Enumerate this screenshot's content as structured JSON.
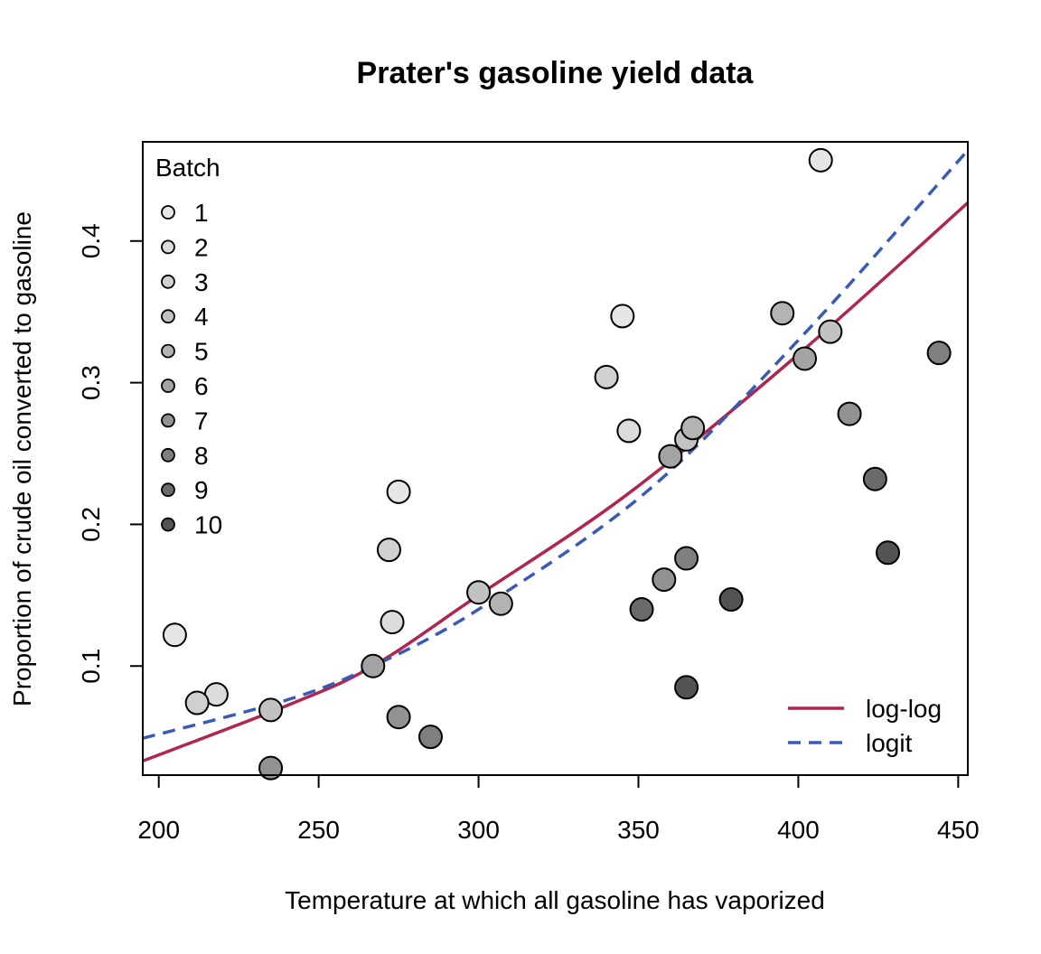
{
  "chart_data": {
    "type": "scatter",
    "title": "Prater's gasoline yield data",
    "xlabel": "Temperature at which all gasoline has vaporized",
    "ylabel": "Proportion of crude oil converted to gasoline",
    "xlim": [
      195,
      453
    ],
    "ylim": [
      0.023,
      0.47
    ],
    "x_ticks": [
      200,
      250,
      300,
      350,
      400,
      450
    ],
    "y_ticks": [
      0.1,
      0.2,
      0.3,
      0.4
    ],
    "grid": false,
    "batch_legend": {
      "title": "Batch",
      "placement": "top-left",
      "items": [
        {
          "label": "1",
          "color": "#e6e6e6"
        },
        {
          "label": "2",
          "color": "#dcdcdc"
        },
        {
          "label": "3",
          "color": "#d0d0d0"
        },
        {
          "label": "4",
          "color": "#c2c2c2"
        },
        {
          "label": "5",
          "color": "#b3b3b3"
        },
        {
          "label": "6",
          "color": "#a3a3a3"
        },
        {
          "label": "7",
          "color": "#929292"
        },
        {
          "label": "8",
          "color": "#7f7f7f"
        },
        {
          "label": "9",
          "color": "#6a6a6a"
        },
        {
          "label": "10",
          "color": "#535353"
        }
      ]
    },
    "points": [
      {
        "x": 205,
        "y": 0.122,
        "batch": 1
      },
      {
        "x": 275,
        "y": 0.223,
        "batch": 1
      },
      {
        "x": 345,
        "y": 0.347,
        "batch": 1
      },
      {
        "x": 407,
        "y": 0.457,
        "batch": 1
      },
      {
        "x": 218,
        "y": 0.08,
        "batch": 2
      },
      {
        "x": 273,
        "y": 0.131,
        "batch": 2
      },
      {
        "x": 347,
        "y": 0.266,
        "batch": 2
      },
      {
        "x": 212,
        "y": 0.074,
        "batch": 3
      },
      {
        "x": 272,
        "y": 0.182,
        "batch": 3
      },
      {
        "x": 340,
        "y": 0.304,
        "batch": 3
      },
      {
        "x": 235,
        "y": 0.069,
        "batch": 4
      },
      {
        "x": 300,
        "y": 0.152,
        "batch": 4
      },
      {
        "x": 365,
        "y": 0.26,
        "batch": 4
      },
      {
        "x": 410,
        "y": 0.336,
        "batch": 4
      },
      {
        "x": 307,
        "y": 0.144,
        "batch": 5
      },
      {
        "x": 367,
        "y": 0.268,
        "batch": 5
      },
      {
        "x": 395,
        "y": 0.349,
        "batch": 5
      },
      {
        "x": 267,
        "y": 0.1,
        "batch": 6
      },
      {
        "x": 360,
        "y": 0.248,
        "batch": 6
      },
      {
        "x": 402,
        "y": 0.317,
        "batch": 6
      },
      {
        "x": 235,
        "y": 0.028,
        "batch": 7
      },
      {
        "x": 275,
        "y": 0.064,
        "batch": 7
      },
      {
        "x": 358,
        "y": 0.161,
        "batch": 7
      },
      {
        "x": 416,
        "y": 0.278,
        "batch": 7
      },
      {
        "x": 285,
        "y": 0.05,
        "batch": 8
      },
      {
        "x": 365,
        "y": 0.176,
        "batch": 8
      },
      {
        "x": 444,
        "y": 0.321,
        "batch": 8
      },
      {
        "x": 351,
        "y": 0.14,
        "batch": 9
      },
      {
        "x": 424,
        "y": 0.232,
        "batch": 9
      },
      {
        "x": 365,
        "y": 0.085,
        "batch": 10
      },
      {
        "x": 379,
        "y": 0.147,
        "batch": 10
      },
      {
        "x": 428,
        "y": 0.18,
        "batch": 10
      }
    ],
    "lines_legend": {
      "placement": "bottom-right",
      "items": [
        {
          "label": "log-log",
          "color": "#b0264e",
          "dash": "solid"
        },
        {
          "label": "logit",
          "color": "#3a5ab8",
          "dash": "dashed"
        }
      ]
    },
    "series": [
      {
        "name": "log-log",
        "color": "#b0264e",
        "x": [
          195,
          240,
          267,
          300,
          347,
          400,
          453
        ],
        "y": [
          0.033,
          0.072,
          0.1,
          0.15,
          0.222,
          0.32,
          0.427
        ]
      },
      {
        "name": "logit",
        "color": "#3a5ab8",
        "x": [
          195,
          240,
          267,
          300,
          352,
          400,
          453
        ],
        "y": [
          0.049,
          0.076,
          0.1,
          0.14,
          0.222,
          0.33,
          0.464
        ]
      }
    ]
  }
}
